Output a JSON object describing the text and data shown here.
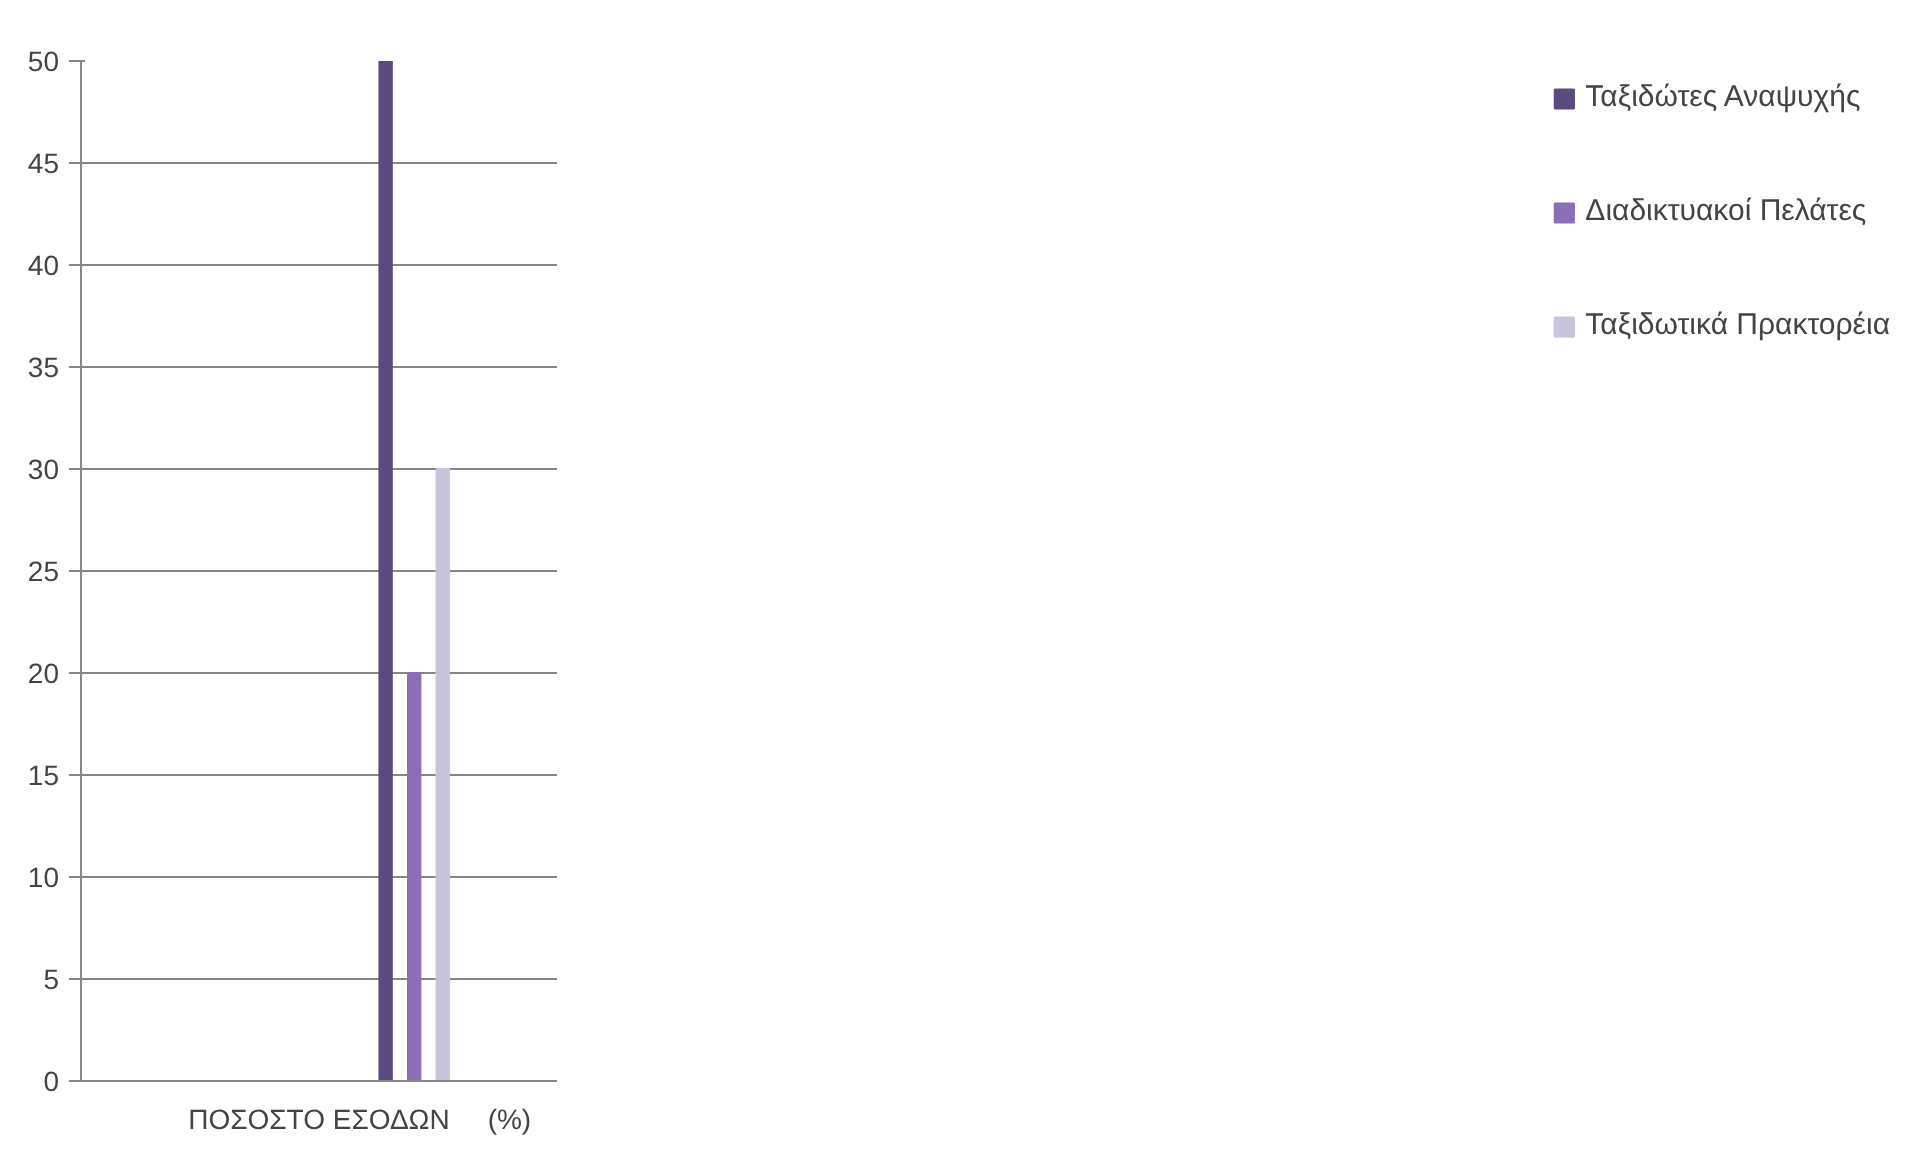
{
  "chart_data": {
    "type": "bar",
    "categories": [
      null,
      null,
      "ΠΟΣΟΣΤΟ ΕΣΟΔΩΝ",
      null,
      "(%)"
    ],
    "series": [
      {
        "name": "Ταξιδώτες Αναψυχής",
        "color": "#5b4a7e",
        "values": [
          null,
          null,
          null,
          50,
          null
        ]
      },
      {
        "color": "#7a62a8",
        "values": [
          null,
          null,
          null,
          null,
          null
        ]
      },
      {
        "name": "Διαδικτυακοί Πελάτες",
        "color": "#8a6fb8",
        "values": [
          null,
          null,
          null,
          20,
          null
        ]
      },
      {
        "color": "#a899cc",
        "values": [
          null,
          null,
          null,
          null,
          null
        ]
      },
      {
        "name": "Ταξιδωτικά Πρακτορέια",
        "color": "#c8c4dc",
        "values": [
          null,
          null,
          null,
          30,
          null
        ]
      }
    ],
    "ylim": [
      0,
      50
    ],
    "yticks": [
      0,
      5,
      10,
      15,
      20,
      25,
      30,
      35,
      40,
      45,
      50
    ],
    "grid": "y",
    "legend": "right"
  }
}
